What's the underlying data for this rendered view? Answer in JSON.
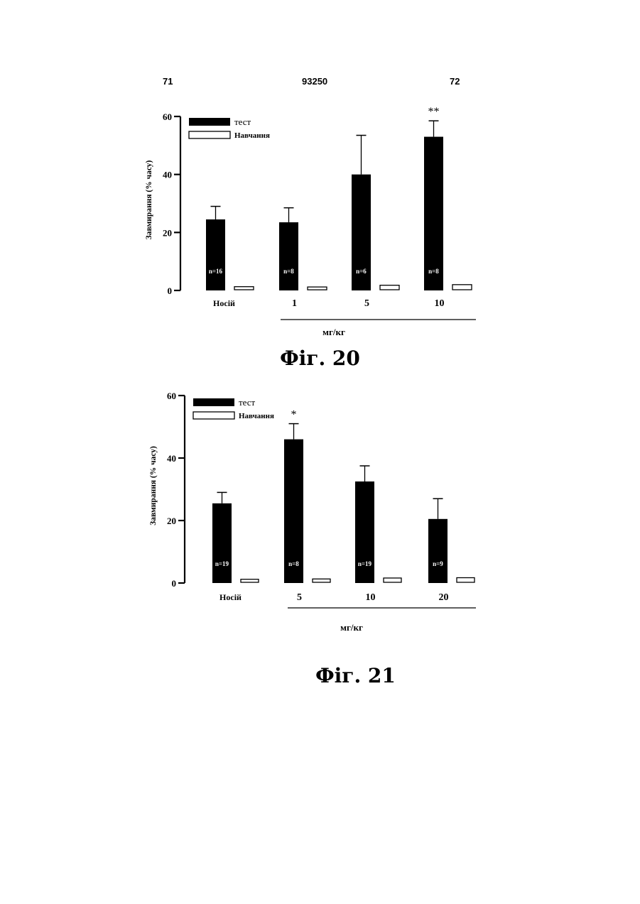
{
  "header": {
    "left": "71",
    "center": "93250",
    "right": "72"
  },
  "chart_data": [
    {
      "type": "bar",
      "caption": "Фіг. 20",
      "ylabel": "Завмирання (% часу)",
      "xlabel": "мг/кг",
      "categories": [
        "Носій",
        "1",
        "5",
        "10"
      ],
      "yticks": [
        "0",
        "20",
        "40",
        "60"
      ],
      "ylim": [
        0,
        60
      ],
      "legend": [
        "тест",
        "Навчання"
      ],
      "series": [
        {
          "name": "тест",
          "values": [
            24.5,
            23.5,
            40,
            53
          ],
          "errors": [
            4.5,
            5,
            13.5,
            5.5
          ],
          "color": "#000000"
        },
        {
          "name": "Навчання",
          "values": [
            1.3,
            1.2,
            1.8,
            2.0
          ],
          "color": "#ffffff"
        }
      ],
      "n_labels": [
        "n=16",
        "n=8",
        "n=6",
        "n=8"
      ],
      "significance": [
        "",
        "",
        "",
        "**"
      ]
    },
    {
      "type": "bar",
      "caption": "Фіг. 21",
      "ylabel": "Завмирання (% часу)",
      "xlabel": "мг/кг",
      "categories": [
        "Носій",
        "5",
        "10",
        "20"
      ],
      "yticks": [
        "0",
        "20",
        "40",
        "60"
      ],
      "ylim": [
        0,
        60
      ],
      "legend": [
        "тест",
        "Навчання"
      ],
      "series": [
        {
          "name": "тест",
          "values": [
            25.5,
            46,
            32.5,
            20.5
          ],
          "errors": [
            3.5,
            5,
            5,
            6.5
          ],
          "color": "#000000"
        },
        {
          "name": "Навчання",
          "values": [
            1.2,
            1.3,
            1.6,
            1.7
          ],
          "color": "#ffffff"
        }
      ],
      "n_labels": [
        "n=19",
        "n=8",
        "n=19",
        "n=9"
      ],
      "significance": [
        "",
        "*",
        "",
        ""
      ]
    }
  ]
}
